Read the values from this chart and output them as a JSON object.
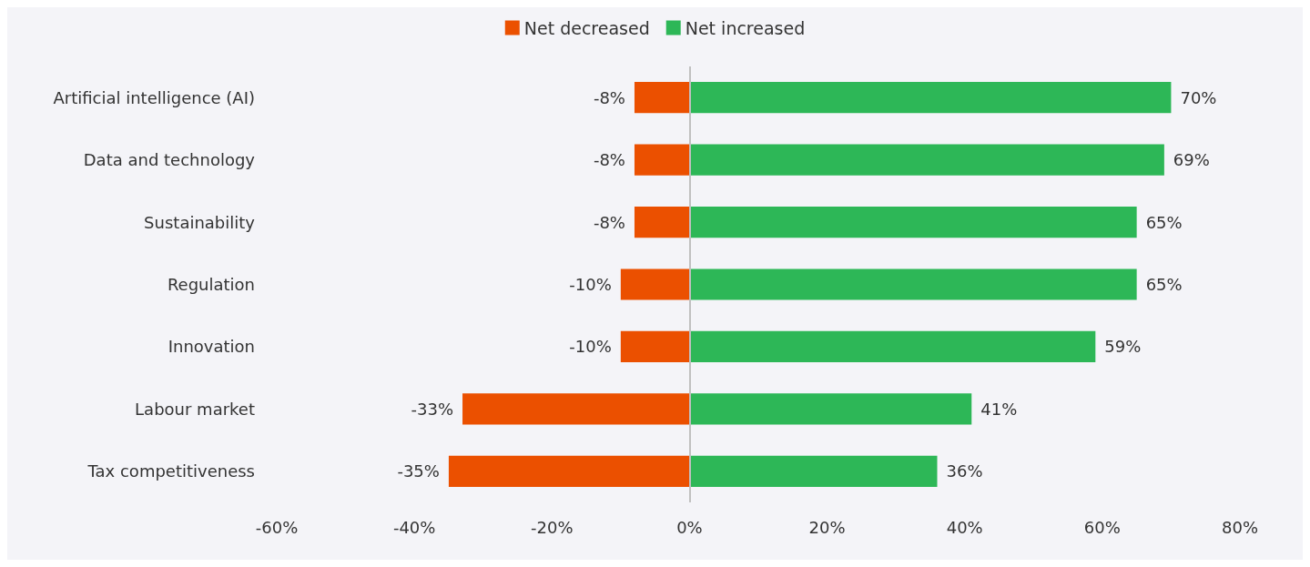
{
  "chart_data": {
    "type": "bar",
    "orientation": "horizontal",
    "stacked": true,
    "legend": "top",
    "grid": false,
    "categories": [
      "Artificial intelligence (AI)",
      "Data and technology",
      "Sustainability",
      "Regulation",
      "Innovation",
      "Labour market",
      "Tax competitiveness"
    ],
    "series": [
      {
        "name": "Net decreased",
        "color": "#eb5000",
        "values": [
          -8,
          -8,
          -8,
          -10,
          -10,
          -33,
          -35
        ],
        "value_labels": [
          "-8%",
          "-8%",
          "-8%",
          "-10%",
          "-10%",
          "-33%",
          "-35%"
        ]
      },
      {
        "name": "Net increased",
        "color": "#2db757",
        "values": [
          70,
          69,
          65,
          65,
          59,
          41,
          36
        ],
        "value_labels": [
          "70%",
          "69%",
          "65%",
          "65%",
          "59%",
          "41%",
          "36%"
        ]
      }
    ],
    "xlim": [
      -60,
      80
    ],
    "xticks": [
      {
        "value": -60,
        "label": "-60%"
      },
      {
        "value": -40,
        "label": "-40%"
      },
      {
        "value": -20,
        "label": "-20%"
      },
      {
        "value": 0,
        "label": "0%"
      },
      {
        "value": 20,
        "label": "20%"
      },
      {
        "value": 40,
        "label": "40%"
      },
      {
        "value": 60,
        "label": "60%"
      },
      {
        "value": 80,
        "label": "80%"
      }
    ],
    "ref_lines": [
      {
        "axis": "x",
        "value": 0,
        "color": "#c0c0c0"
      }
    ]
  }
}
